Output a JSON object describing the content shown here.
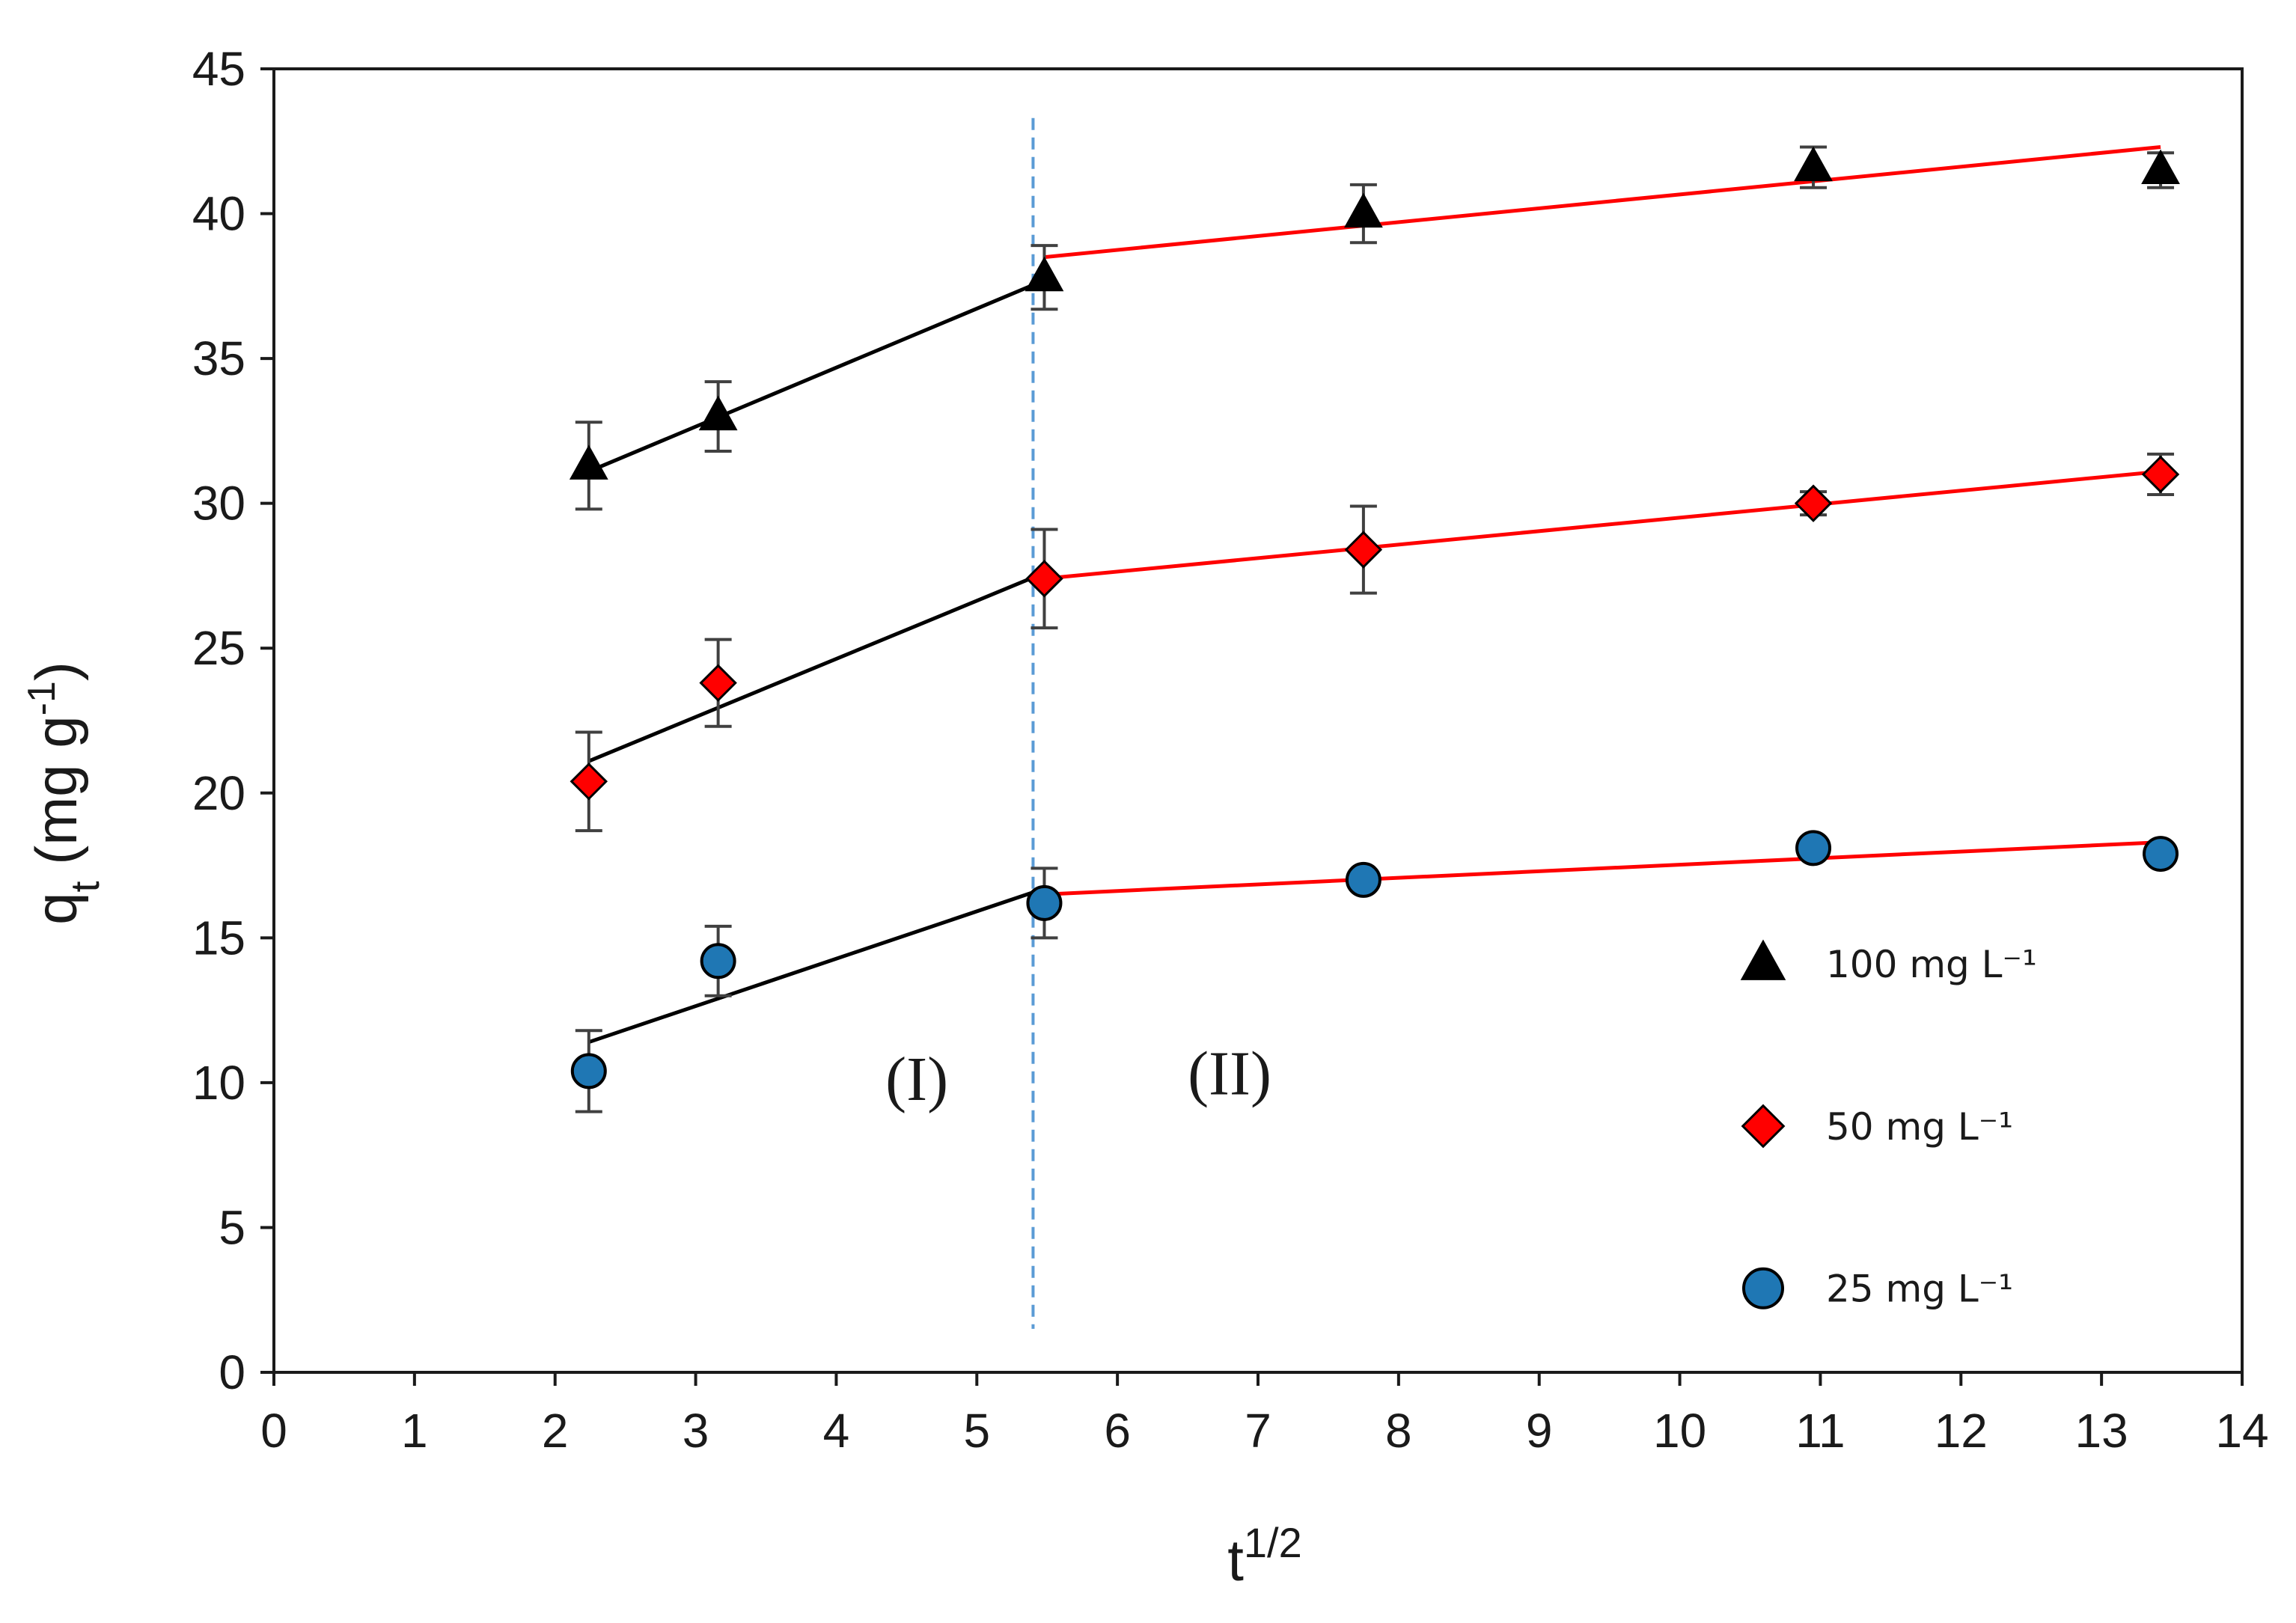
{
  "chart_data": {
    "type": "scatter",
    "title": "",
    "xlabel_base": "t",
    "xlabel_sup": "1/2",
    "ylabel_base": "q",
    "ylabel_sub": "t",
    "ylabel_unit": " (mg g",
    "ylabel_unit_sup": "-1",
    "ylabel_close": ")",
    "xlim": [
      0,
      14
    ],
    "ylim": [
      0,
      45
    ],
    "xticks": [
      0,
      1,
      2,
      3,
      4,
      5,
      6,
      7,
      8,
      9,
      10,
      11,
      12,
      13,
      14
    ],
    "yticks": [
      0,
      5,
      10,
      15,
      20,
      25,
      30,
      35,
      40,
      45
    ],
    "grid": false,
    "legend_position": "lower-right",
    "divider_x": 5.4,
    "regions": [
      {
        "label": "(I)",
        "x": 4.35,
        "y": 9.4
      },
      {
        "label": "(II)",
        "x": 6.5,
        "y": 9.6
      }
    ],
    "series": [
      {
        "name": "100 mg L⁻¹",
        "marker": "triangle",
        "color": "#000000",
        "x": [
          2.24,
          3.16,
          5.48,
          7.75,
          10.95,
          13.42
        ],
        "y": [
          31.3,
          33.0,
          37.8,
          40.0,
          41.6,
          41.5
        ],
        "err": [
          1.5,
          1.2,
          1.1,
          1.0,
          0.7,
          0.6
        ],
        "fit_I": {
          "x": [
            2.24,
            5.48
          ],
          "y": [
            31.1,
            37.7
          ]
        },
        "fit_II": {
          "x": [
            5.48,
            13.42
          ],
          "y": [
            38.5,
            42.3
          ]
        }
      },
      {
        "name": "50 mg L⁻¹",
        "marker": "diamond",
        "color": "#ff0000",
        "x": [
          2.24,
          3.16,
          5.48,
          7.75,
          10.95,
          13.42
        ],
        "y": [
          20.4,
          23.8,
          27.4,
          28.4,
          30.0,
          31.0
        ],
        "err": [
          1.7,
          1.5,
          1.7,
          1.5,
          0.4,
          0.7
        ],
        "fit_I": {
          "x": [
            2.24,
            5.48
          ],
          "y": [
            21.1,
            27.6
          ]
        },
        "fit_II": {
          "x": [
            5.48,
            13.42
          ],
          "y": [
            27.4,
            31.1
          ]
        }
      },
      {
        "name": "25 mg L⁻¹",
        "marker": "circle",
        "color": "#1f77b4",
        "x": [
          2.24,
          3.16,
          5.48,
          7.75,
          10.95,
          13.42
        ],
        "y": [
          10.4,
          14.2,
          16.2,
          17.0,
          18.1,
          17.9
        ],
        "err": [
          1.4,
          1.2,
          1.2,
          0.3,
          0.3,
          0.3
        ],
        "fit_I": {
          "x": [
            2.24,
            5.48
          ],
          "y": [
            11.4,
            16.7
          ]
        },
        "fit_II": {
          "x": [
            5.48,
            13.42
          ],
          "y": [
            16.5,
            18.3
          ]
        }
      }
    ]
  }
}
